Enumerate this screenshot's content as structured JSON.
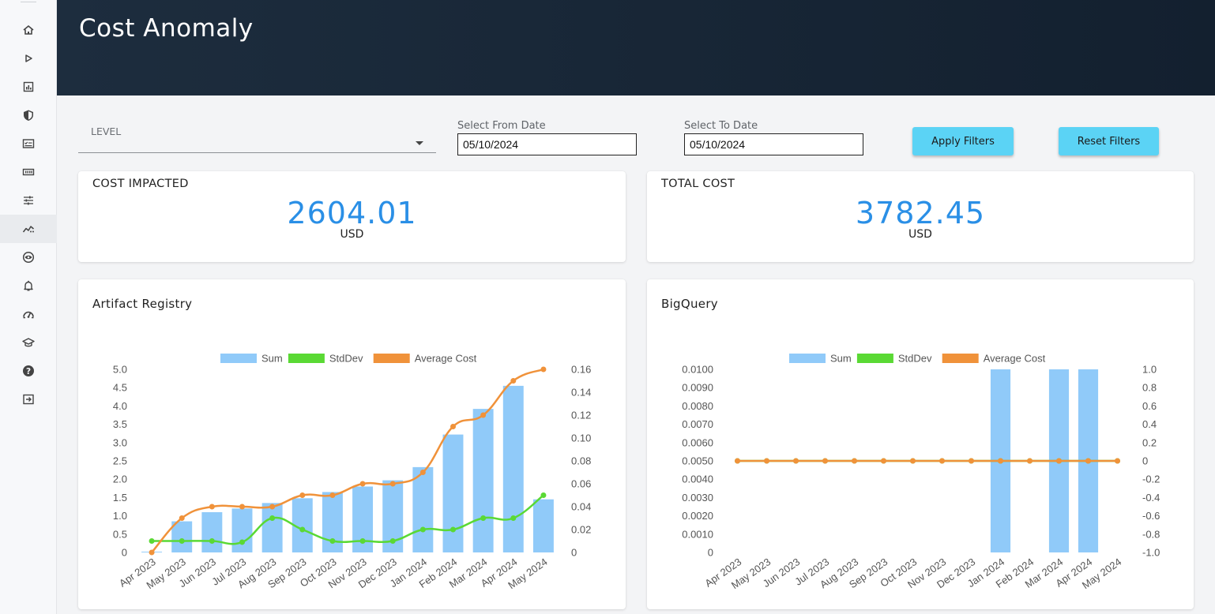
{
  "sidebar": {
    "items": [
      {
        "icon": "home-icon"
      },
      {
        "icon": "play-icon"
      },
      {
        "icon": "bar-chart-icon"
      },
      {
        "icon": "shield-icon"
      },
      {
        "icon": "checklist-icon"
      },
      {
        "icon": "grid-icon"
      },
      {
        "icon": "sliders-icon"
      },
      {
        "icon": "anomaly-trend-icon",
        "active": true
      },
      {
        "icon": "eye-icon"
      },
      {
        "icon": "bell-icon"
      },
      {
        "icon": "speedometer-icon"
      },
      {
        "icon": "graduation-cap-icon"
      },
      {
        "icon": "help-icon"
      },
      {
        "icon": "logout-icon"
      }
    ]
  },
  "header": {
    "title": "Cost Anomaly"
  },
  "filters": {
    "level_label": "LEVEL",
    "from_label": "Select From Date",
    "from_value": "05/10/2024",
    "to_label": "Select To Date",
    "to_value": "05/10/2024",
    "apply_label": "Apply Filters",
    "reset_label": "Reset Filters"
  },
  "stats": {
    "cost_impacted": {
      "title": "COST IMPACTED",
      "value": "2604.01",
      "unit": "USD"
    },
    "total_cost": {
      "title": "TOTAL COST",
      "value": "3782.45",
      "unit": "USD"
    }
  },
  "colors": {
    "sum": "#90caf9",
    "stddev": "#5ad934",
    "average": "#f0923a",
    "accent": "#2a8fe6",
    "button": "#5bd3f5"
  },
  "chart_data": [
    {
      "type": "bar",
      "title": "Artifact Registry",
      "categories": [
        "Apr 2023",
        "May 2023",
        "Jun 2023",
        "Jul 2023",
        "Aug 2023",
        "Sep 2023",
        "Oct 2023",
        "Nov 2023",
        "Dec 2023",
        "Jan 2024",
        "Feb 2024",
        "Mar 2024",
        "Apr 2024",
        "May 2024"
      ],
      "y_left_ticks": [
        "5.0",
        "4.5",
        "4.0",
        "3.5",
        "3.0",
        "2.5",
        "2.0",
        "1.5",
        "1.0",
        "0.5",
        "0"
      ],
      "y_right_ticks": [
        "0.16",
        "0.14",
        "0.12",
        "0.10",
        "0.08",
        "0.06",
        "0.04",
        "0.02",
        "0"
      ],
      "ylim_left": [
        0,
        5
      ],
      "ylim_right": [
        0,
        0.16
      ],
      "legend_position": "top",
      "series": [
        {
          "name": "Sum",
          "kind": "bar",
          "axis": "left",
          "color": "#90caf9",
          "values": [
            0.02,
            0.85,
            1.1,
            1.2,
            1.35,
            1.48,
            1.65,
            1.8,
            1.97,
            2.33,
            3.22,
            3.92,
            4.55,
            1.45
          ]
        },
        {
          "name": "StdDev",
          "kind": "line",
          "axis": "right",
          "color": "#5ad934",
          "values": [
            0.01,
            0.01,
            0.01,
            0.009,
            0.03,
            0.02,
            0.01,
            0.01,
            0.01,
            0.02,
            0.02,
            0.03,
            0.03,
            0.05
          ]
        },
        {
          "name": "Average Cost",
          "kind": "line",
          "axis": "right",
          "color": "#f0923a",
          "values": [
            0,
            0.03,
            0.04,
            0.04,
            0.04,
            0.05,
            0.05,
            0.06,
            0.06,
            0.07,
            0.11,
            0.12,
            0.15,
            0.16
          ]
        }
      ]
    },
    {
      "type": "bar",
      "title": "BigQuery",
      "categories": [
        "Apr 2023",
        "May 2023",
        "Jun 2023",
        "Jul 2023",
        "Aug 2023",
        "Sep 2023",
        "Oct 2023",
        "Nov 2023",
        "Dec 2023",
        "Jan 2024",
        "Feb 2024",
        "Mar 2024",
        "Apr 2024",
        "May 2024"
      ],
      "y_left_ticks": [
        "0.0100",
        "0.0090",
        "0.0080",
        "0.0070",
        "0.0060",
        "0.0050",
        "0.0040",
        "0.0030",
        "0.0020",
        "0.0010",
        "0"
      ],
      "y_right_ticks": [
        "1.0",
        "0.8",
        "0.6",
        "0.4",
        "0.2",
        "0",
        "-0.2",
        "-0.4",
        "-0.6",
        "-0.8",
        "-1.0"
      ],
      "ylim_left": [
        0,
        0.01
      ],
      "ylim_right": [
        -1,
        1
      ],
      "legend_position": "top",
      "series": [
        {
          "name": "Sum",
          "kind": "bar",
          "axis": "left",
          "color": "#90caf9",
          "values": [
            0,
            0,
            0,
            0,
            0,
            0,
            0,
            0,
            0,
            0.01,
            0,
            0.01,
            0.01,
            0
          ]
        },
        {
          "name": "StdDev",
          "kind": "line",
          "axis": "right",
          "color": "#5ad934",
          "values": [
            0,
            0,
            0,
            0,
            0,
            0,
            0,
            0,
            0,
            0,
            0,
            0,
            0,
            0
          ]
        },
        {
          "name": "Average Cost",
          "kind": "line",
          "axis": "right",
          "color": "#f0923a",
          "values": [
            0,
            0,
            0,
            0,
            0,
            0,
            0,
            0,
            0,
            0,
            0,
            0,
            0,
            0
          ]
        }
      ]
    }
  ]
}
